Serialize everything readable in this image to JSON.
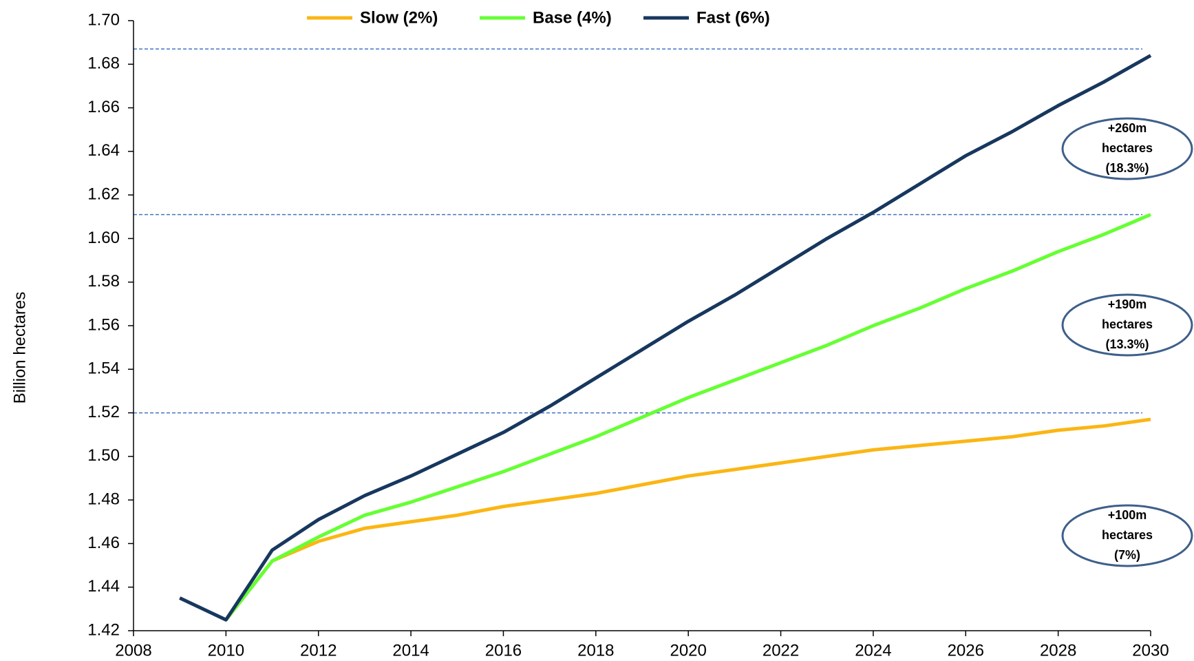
{
  "chart_data": {
    "type": "line",
    "y_label": "Billion hectares",
    "x": [
      2009,
      2010,
      2011,
      2012,
      2013,
      2014,
      2015,
      2016,
      2017,
      2018,
      2019,
      2020,
      2021,
      2022,
      2023,
      2024,
      2025,
      2026,
      2027,
      2028,
      2029,
      2030
    ],
    "series": [
      {
        "name": "Slow (2%)",
        "color": "#fbb614",
        "values": [
          null,
          1.425,
          1.452,
          1.461,
          1.467,
          1.47,
          1.473,
          1.477,
          1.48,
          1.483,
          1.487,
          1.491,
          1.494,
          1.497,
          1.5,
          1.503,
          1.505,
          1.507,
          1.509,
          1.512,
          1.514,
          1.517
        ]
      },
      {
        "name": "Base (4%)",
        "color": "#66ff33",
        "values": [
          null,
          1.425,
          1.452,
          1.463,
          1.473,
          1.479,
          1.486,
          1.493,
          1.501,
          1.509,
          1.518,
          1.527,
          1.535,
          1.543,
          1.551,
          1.56,
          1.568,
          1.577,
          1.585,
          1.594,
          1.602,
          1.611
        ]
      },
      {
        "name": "Fast (6%)",
        "color": "#17375e",
        "values": [
          1.435,
          1.425,
          1.457,
          1.471,
          1.482,
          1.491,
          1.501,
          1.511,
          1.523,
          1.536,
          1.549,
          1.562,
          1.574,
          1.587,
          1.6,
          1.612,
          1.625,
          1.638,
          1.649,
          1.661,
          1.672,
          1.684
        ]
      }
    ],
    "reference_lines": [
      1.687,
      1.611,
      1.52
    ],
    "annotations": [
      {
        "lines": [
          "+260m",
          "hectares",
          "(18.3%)"
        ]
      },
      {
        "lines": [
          "+190m",
          "hectares",
          "(13.3%)"
        ]
      },
      {
        "lines": [
          "+100m",
          "hectares",
          "(7%)"
        ]
      }
    ],
    "xlim": [
      2008,
      2030
    ],
    "xticks": [
      2008,
      2010,
      2012,
      2014,
      2016,
      2018,
      2020,
      2022,
      2024,
      2026,
      2028,
      2030
    ],
    "ylim": [
      1.42,
      1.7
    ],
    "yticks": [
      {
        "value": 1.42,
        "label": "1.42"
      },
      {
        "value": 1.44,
        "label": "1.44"
      },
      {
        "value": 1.46,
        "label": "1.46"
      },
      {
        "value": 1.48,
        "label": "1.48"
      },
      {
        "value": 1.5,
        "label": "1.50"
      },
      {
        "value": 1.52,
        "label": "1.52"
      },
      {
        "value": 1.54,
        "label": "1.54"
      },
      {
        "value": 1.56,
        "label": "1.56"
      },
      {
        "value": 1.58,
        "label": "1.58"
      },
      {
        "value": 1.6,
        "label": "1.60"
      },
      {
        "value": 1.62,
        "label": "1.62"
      },
      {
        "value": 1.64,
        "label": "1.64"
      },
      {
        "value": 1.66,
        "label": "1.66"
      },
      {
        "value": 1.68,
        "label": "1.68"
      },
      {
        "value": 1.7,
        "label": "1.70"
      }
    ],
    "legend": "top"
  }
}
